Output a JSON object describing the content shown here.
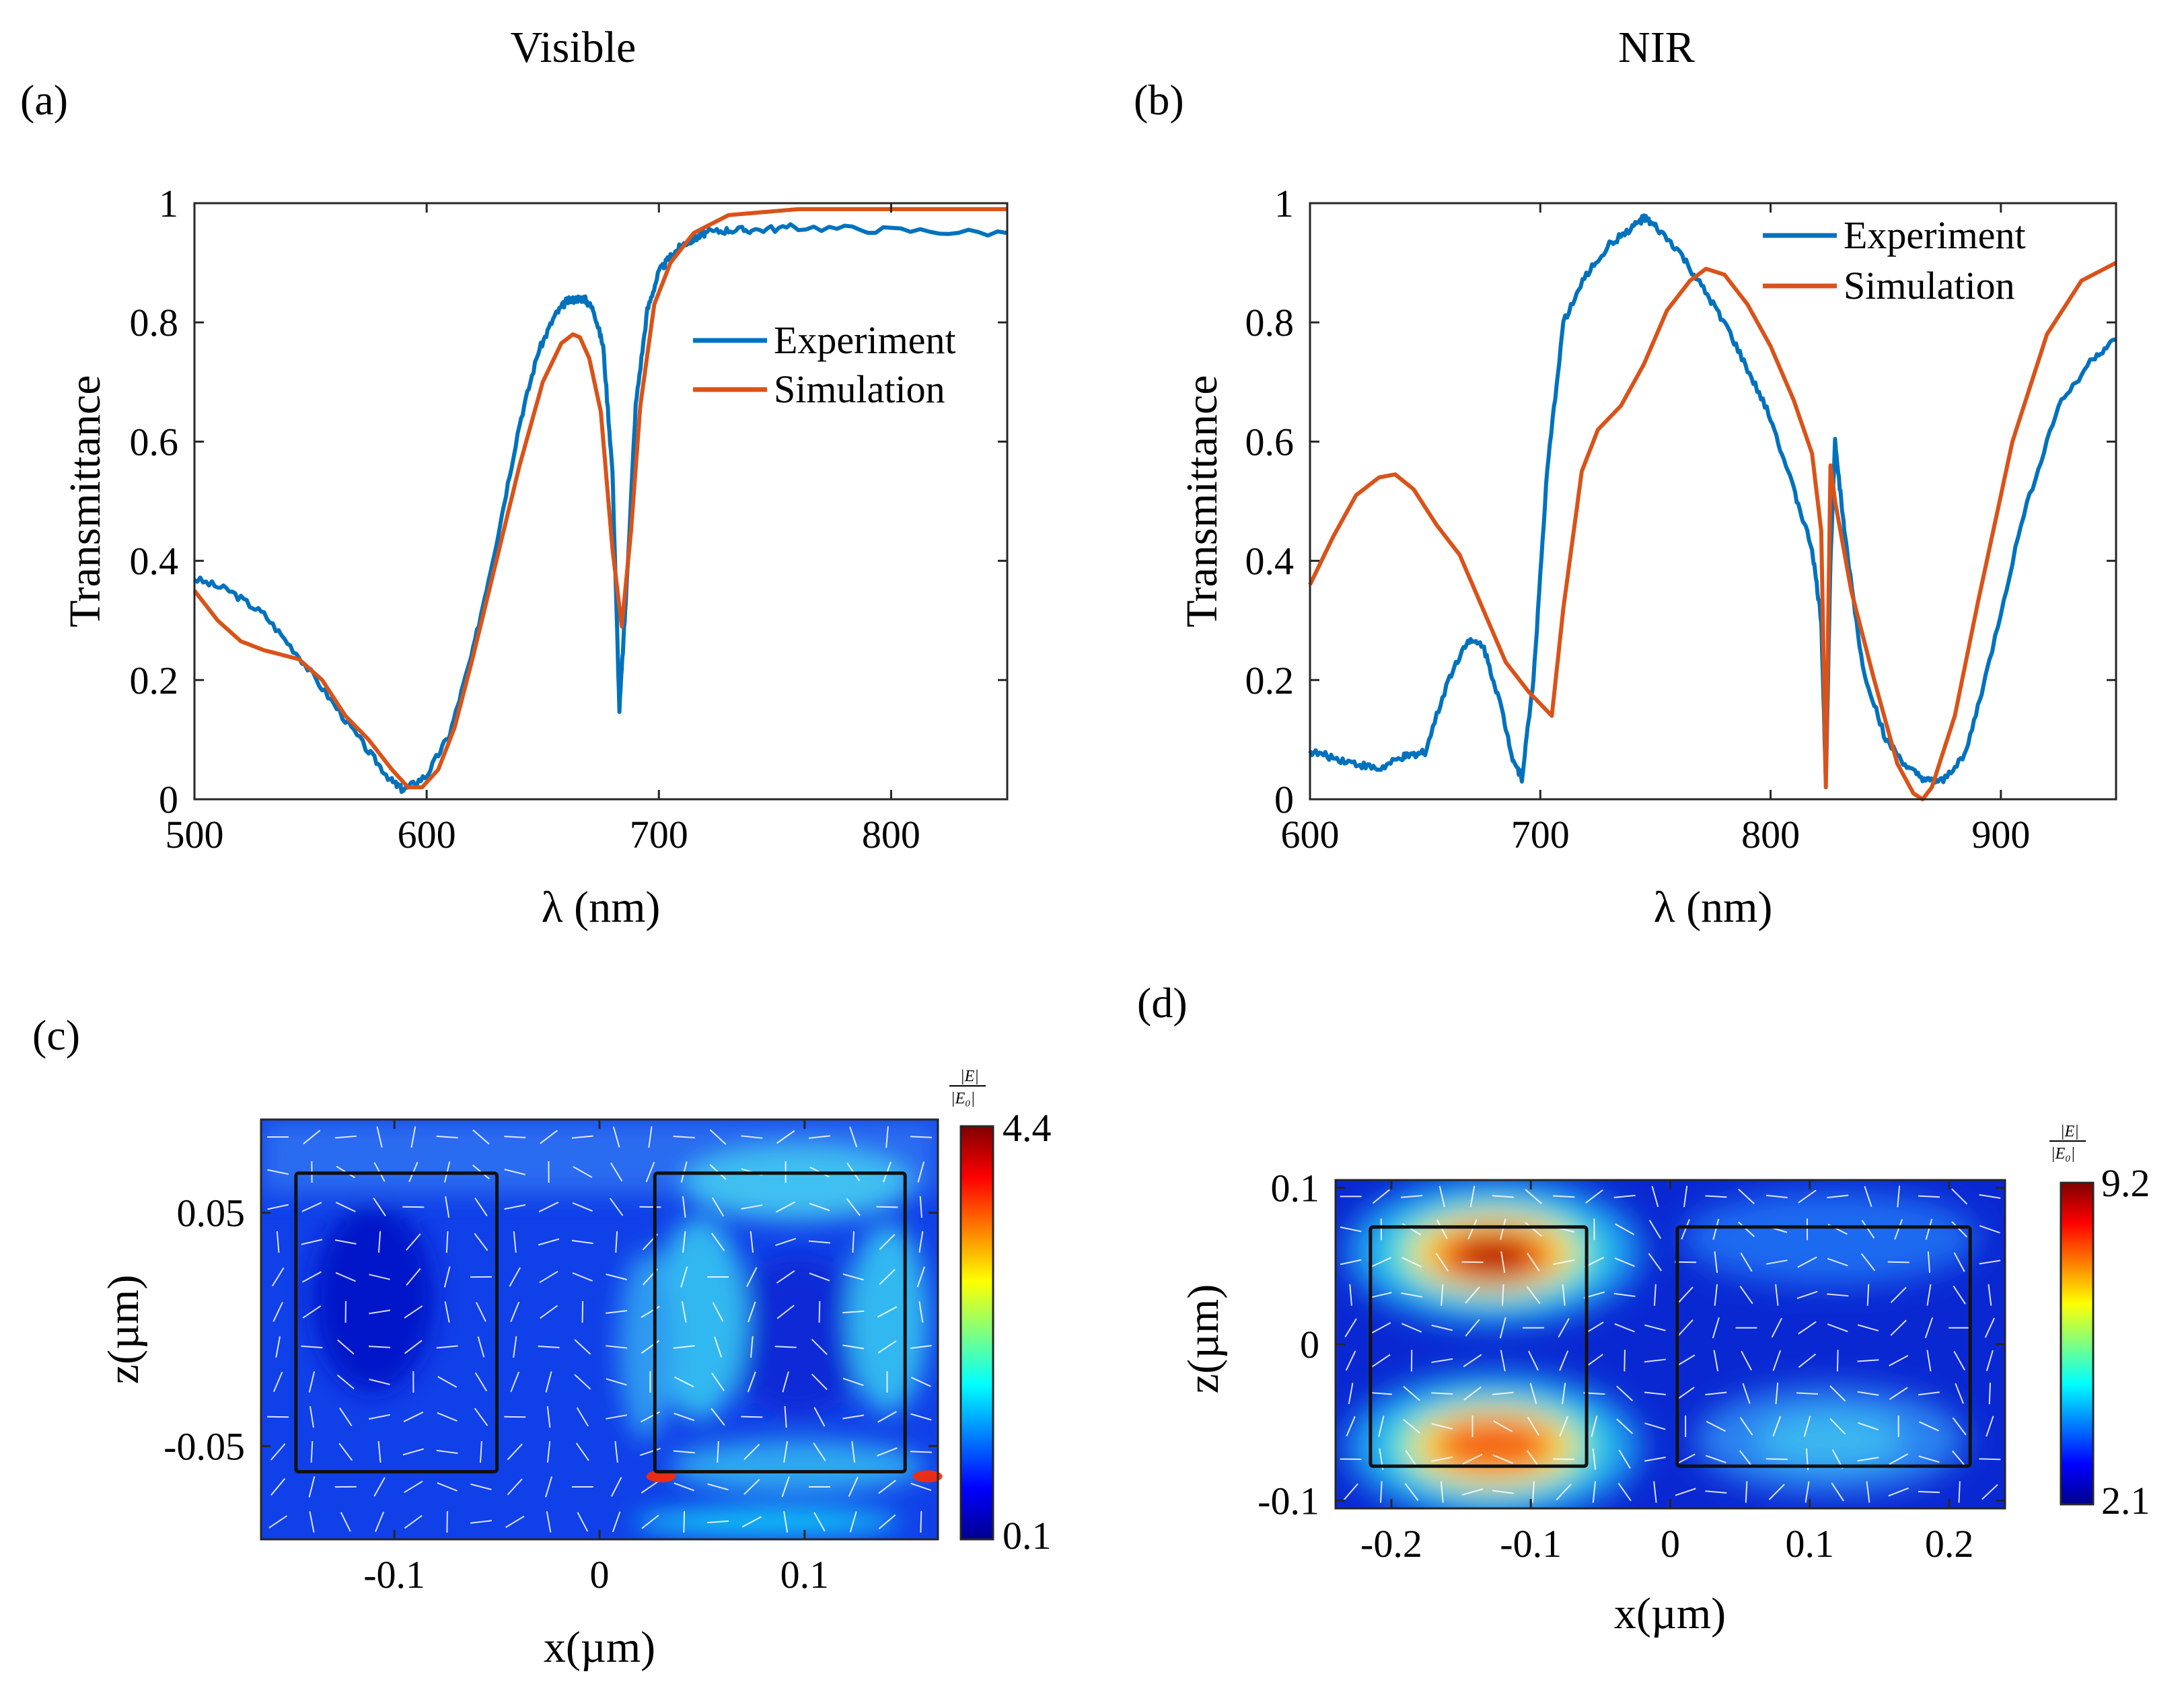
{
  "chart_data": [
    {
      "panel": "(a)",
      "type": "line",
      "title": "Visible",
      "xlabel": "λ (nm)",
      "ylabel": "Transmittance",
      "xlim": [
        500,
        850
      ],
      "ylim": [
        0,
        1
      ],
      "xticks": [
        "500",
        "600",
        "700",
        "800"
      ],
      "xtick_values": [
        500,
        600,
        700,
        800
      ],
      "yticks": [
        "0",
        "0.2",
        "0.4",
        "0.6",
        "0.8",
        "1"
      ],
      "ytick_values": [
        0,
        0.2,
        0.4,
        0.6,
        0.8,
        1
      ],
      "legend": [
        "Experiment",
        "Simulation"
      ],
      "legend_position": "center-right",
      "series": [
        {
          "name": "Experiment",
          "color": "#0072BD",
          "x": [
            500,
            515,
            530,
            545,
            560,
            575,
            585,
            590,
            600,
            610,
            620,
            630,
            640,
            648,
            655,
            660,
            665,
            668,
            672,
            676,
            680,
            683,
            686,
            690,
            695,
            700,
            705,
            710,
            715,
            720,
            730,
            740,
            760,
            800,
            850
          ],
          "y": [
            0.37,
            0.35,
            0.31,
            0.24,
            0.16,
            0.08,
            0.03,
            0.015,
            0.04,
            0.11,
            0.25,
            0.43,
            0.63,
            0.75,
            0.81,
            0.835,
            0.84,
            0.84,
            0.82,
            0.76,
            0.55,
            0.15,
            0.35,
            0.66,
            0.82,
            0.885,
            0.91,
            0.93,
            0.94,
            0.95,
            0.955,
            0.955,
            0.96,
            0.955,
            0.95
          ]
        },
        {
          "name": "Simulation",
          "color": "#D95319",
          "x": [
            500,
            510,
            520,
            530,
            545,
            555,
            565,
            575,
            585,
            592,
            598,
            605,
            612,
            620,
            630,
            640,
            650,
            658,
            663,
            666,
            670,
            675,
            680,
            684,
            688,
            692,
            698,
            705,
            715,
            730,
            760,
            800,
            850
          ],
          "y": [
            0.35,
            0.3,
            0.265,
            0.25,
            0.235,
            0.2,
            0.14,
            0.1,
            0.05,
            0.02,
            0.02,
            0.05,
            0.12,
            0.24,
            0.4,
            0.56,
            0.7,
            0.765,
            0.78,
            0.775,
            0.74,
            0.65,
            0.42,
            0.29,
            0.45,
            0.66,
            0.83,
            0.9,
            0.95,
            0.98,
            0.99,
            0.99,
            0.99
          ]
        }
      ]
    },
    {
      "panel": "(b)",
      "type": "line",
      "title": "NIR",
      "xlabel": "λ (nm)",
      "ylabel": "Transmittance",
      "xlim": [
        600,
        950
      ],
      "ylim": [
        0,
        1
      ],
      "xticks": [
        "600",
        "700",
        "800",
        "900"
      ],
      "xtick_values": [
        600,
        700,
        800,
        900
      ],
      "yticks": [
        "0",
        "0.2",
        "0.4",
        "0.6",
        "0.8",
        "1"
      ],
      "ytick_values": [
        0,
        0.2,
        0.4,
        0.6,
        0.8,
        1
      ],
      "legend": [
        "Experiment",
        "Simulation"
      ],
      "legend_position": "top-right",
      "series": [
        {
          "name": "Experiment",
          "color": "#0072BD",
          "x": [
            600,
            610,
            620,
            630,
            640,
            645,
            650,
            660,
            668,
            675,
            682,
            688,
            692,
            697,
            703,
            710,
            720,
            730,
            740,
            745,
            750,
            760,
            770,
            780,
            790,
            800,
            810,
            818,
            822,
            824,
            826,
            828,
            832,
            840,
            850,
            860,
            868,
            875,
            885,
            895,
            910,
            925,
            940,
            950
          ],
          "y": [
            0.08,
            0.07,
            0.06,
            0.05,
            0.07,
            0.075,
            0.08,
            0.2,
            0.265,
            0.26,
            0.17,
            0.07,
            0.035,
            0.2,
            0.55,
            0.8,
            0.88,
            0.93,
            0.96,
            0.975,
            0.96,
            0.92,
            0.86,
            0.8,
            0.72,
            0.64,
            0.52,
            0.42,
            0.3,
            0.03,
            0.4,
            0.6,
            0.45,
            0.22,
            0.1,
            0.05,
            0.03,
            0.03,
            0.08,
            0.23,
            0.48,
            0.66,
            0.74,
            0.77
          ]
        },
        {
          "name": "Simulation",
          "color": "#D95319",
          "x": [
            600,
            610,
            620,
            630,
            637,
            645,
            655,
            665,
            675,
            685,
            695,
            700,
            705,
            710,
            718,
            725,
            735,
            745,
            755,
            765,
            772,
            780,
            790,
            800,
            810,
            818,
            822,
            824,
            826,
            828,
            835,
            845,
            855,
            862,
            866,
            870,
            880,
            890,
            905,
            920,
            935,
            950
          ],
          "y": [
            0.36,
            0.44,
            0.51,
            0.54,
            0.545,
            0.52,
            0.46,
            0.41,
            0.32,
            0.23,
            0.18,
            0.16,
            0.14,
            0.32,
            0.55,
            0.62,
            0.66,
            0.73,
            0.82,
            0.87,
            0.89,
            0.88,
            0.83,
            0.76,
            0.67,
            0.58,
            0.45,
            0.02,
            0.56,
            0.5,
            0.35,
            0.2,
            0.06,
            0.01,
            0.0,
            0.02,
            0.14,
            0.33,
            0.6,
            0.78,
            0.87,
            0.9
          ]
        }
      ]
    },
    {
      "panel": "(c)",
      "type": "heatmap",
      "xlabel": "x(µm)",
      "ylabel": "z(µm)",
      "xlim": [
        -0.165,
        0.165
      ],
      "ylim": [
        -0.09,
        0.09
      ],
      "xticks": [
        "-0.1",
        "0",
        "0.1"
      ],
      "xtick_values": [
        -0.1,
        0,
        0.1
      ],
      "yticks": [
        "-0.05",
        "0.05"
      ],
      "ytick_values": [
        -0.05,
        0.05
      ],
      "colorbar_label": "|E|/|E0|",
      "colorbar_min": "0.1",
      "colorbar_max": "4.4",
      "colorbar_range": [
        0.1,
        4.4
      ],
      "rectangles_um": [
        {
          "x0": -0.148,
          "x1": -0.05,
          "z0": -0.061,
          "z1": 0.067
        },
        {
          "x0": 0.027,
          "x1": 0.149,
          "z0": -0.061,
          "z1": 0.067
        }
      ],
      "hotspots": [
        {
          "x": 0.03,
          "z": -0.063,
          "value": 4.4
        },
        {
          "x": 0.16,
          "z": -0.063,
          "value": 4.2
        }
      ]
    },
    {
      "panel": "(d)",
      "type": "heatmap",
      "xlabel": "x(µm)",
      "ylabel": "z(µm)",
      "xlim": [
        -0.24,
        0.24
      ],
      "ylim": [
        -0.105,
        0.105
      ],
      "xticks": [
        "-0.2",
        "-0.1",
        "0",
        "0.1",
        "0.2"
      ],
      "xtick_values": [
        -0.2,
        -0.1,
        0,
        0.1,
        0.2
      ],
      "yticks": [
        "-0.1",
        "0",
        "0.1"
      ],
      "ytick_values": [
        -0.1,
        0,
        0.1
      ],
      "colorbar_label": "|E|/|E0|",
      "colorbar_min": "2.1",
      "colorbar_max": "9.2",
      "colorbar_range": [
        2.1,
        9.2
      ],
      "rectangles_um": [
        {
          "x0": -0.215,
          "x1": -0.06,
          "z0": -0.078,
          "z1": 0.075
        },
        {
          "x0": 0.005,
          "x1": 0.215,
          "z0": -0.078,
          "z1": 0.075
        }
      ],
      "hotspots": [
        {
          "x": -0.145,
          "z": 0.058,
          "value": 9.2
        },
        {
          "x": -0.145,
          "z": -0.06,
          "value": 8.6
        }
      ]
    }
  ],
  "labels": {
    "panel_a": "(a)",
    "panel_b": "(b)",
    "panel_c": "(c)",
    "panel_d": "(d)"
  }
}
